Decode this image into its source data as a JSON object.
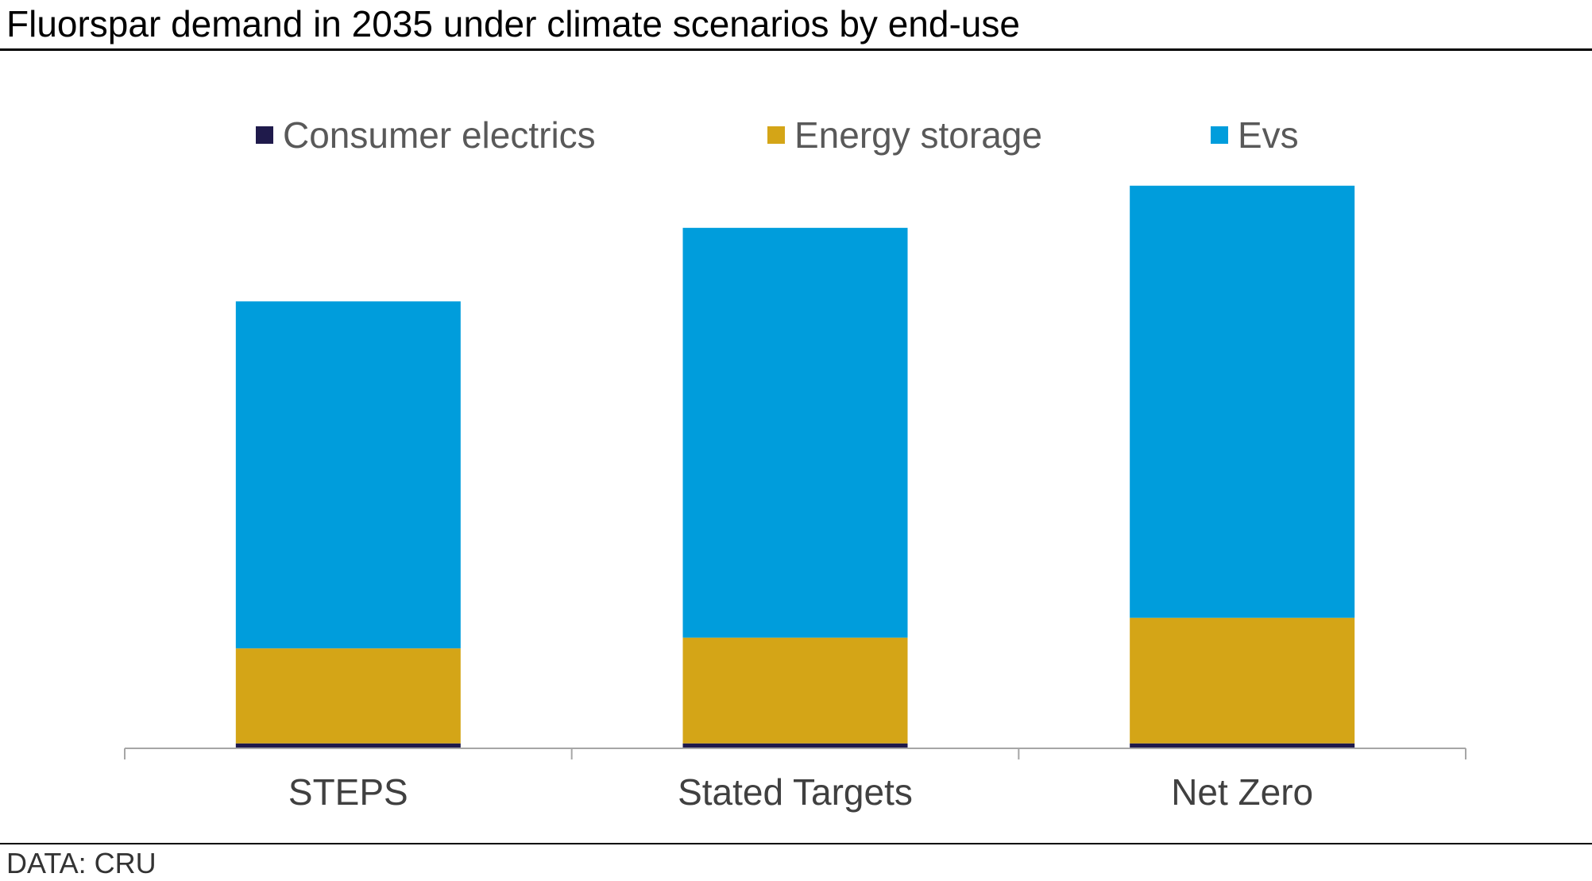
{
  "title": "Fluorspar demand in 2035 under climate scenarios by end-use",
  "source": "DATA: CRU",
  "chart_data": {
    "type": "bar",
    "stacked": true,
    "categories": [
      "STEPS",
      "Stated Targets",
      "Net Zero"
    ],
    "series": [
      {
        "name": "Consumer electrics",
        "color": "#1f1a4b",
        "values": [
          0.6,
          0.6,
          0.6
        ]
      },
      {
        "name": "Energy storage",
        "color": "#d4a517",
        "values": [
          11.5,
          12.8,
          15.2
        ]
      },
      {
        "name": "Evs",
        "color": "#009ddc",
        "values": [
          42.0,
          49.6,
          52.3
        ]
      }
    ],
    "ylim": [
      0,
      70
    ],
    "grid": false,
    "legend": "top",
    "xlabel": "",
    "ylabel": ""
  }
}
